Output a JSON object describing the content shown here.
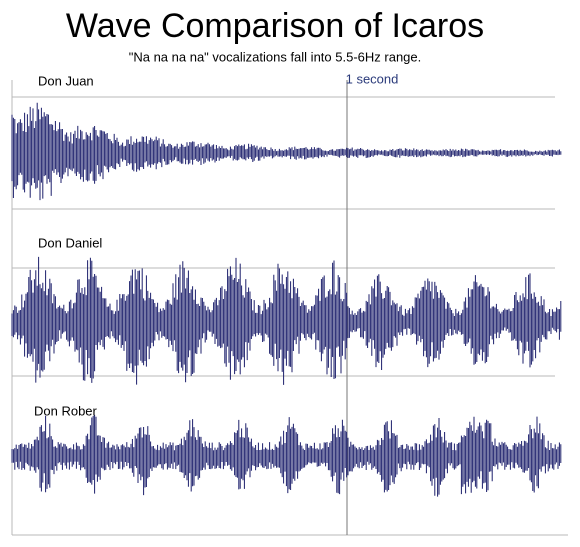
{
  "title": "Wave Comparison of Icaros",
  "subtitle": "\"Na na na na\" vocalizations fall into 5.5-6Hz range.",
  "marker": {
    "label": "1 second"
  },
  "panels": [
    {
      "label": "Don Juan"
    },
    {
      "label": "Don Daniel"
    },
    {
      "label": "Don Rober"
    }
  ]
}
